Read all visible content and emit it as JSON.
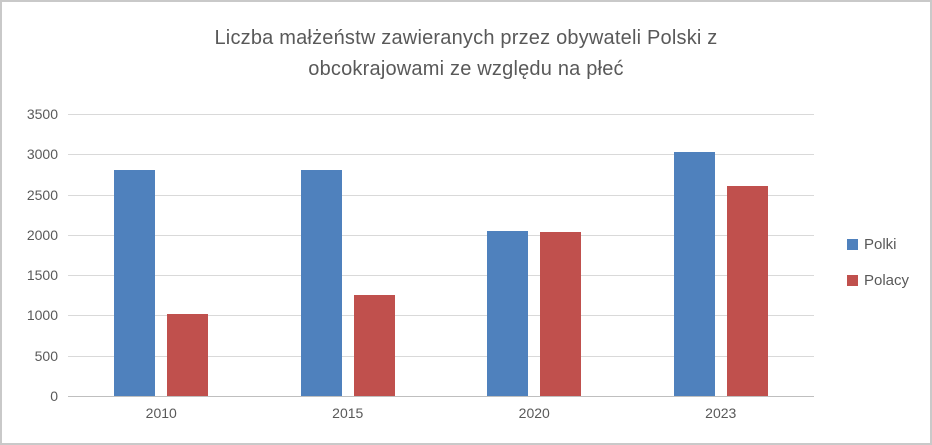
{
  "chart_data": {
    "type": "bar",
    "title": "Liczba małżeństw zawieranych przez obywateli Polski z obcokrajowami ze względu na płeć",
    "title_lines": [
      "Liczba małżeństw zawieranych przez obywateli Polski z",
      "obcokrajowami ze względu na płeć"
    ],
    "categories": [
      "2010",
      "2015",
      "2020",
      "2023"
    ],
    "series": [
      {
        "name": "Polki",
        "color": "#4F81BD",
        "values": [
          2800,
          2800,
          2050,
          3030
        ]
      },
      {
        "name": "Polacy",
        "color": "#C0504D",
        "values": [
          1020,
          1250,
          2040,
          2610
        ]
      }
    ],
    "xlabel": "",
    "ylabel": "",
    "ylim": [
      0,
      3500
    ],
    "yticks": [
      0,
      500,
      1000,
      1500,
      2000,
      2500,
      3000,
      3500
    ],
    "grid": true,
    "legend_position": "right",
    "colors": {
      "text": "#595959",
      "gridline": "#d9d9d9",
      "axis_line": "#bfbfbf",
      "frame_border": "#c9c9c9",
      "background": "#ffffff"
    }
  }
}
